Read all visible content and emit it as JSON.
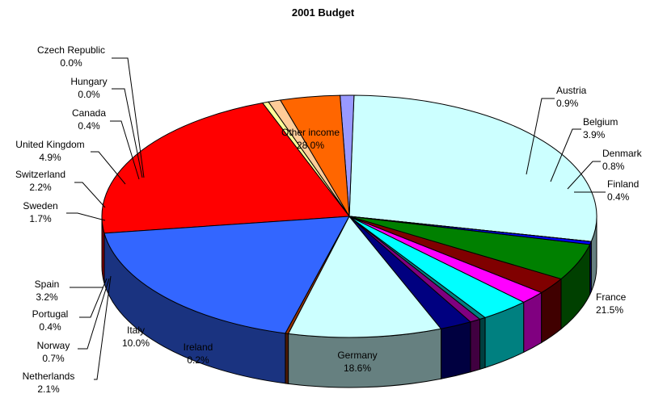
{
  "chart_data": {
    "type": "pie",
    "title": "2001 Budget",
    "slices": [
      {
        "label": "Other income",
        "value": 28.0,
        "value_label": "28.0%",
        "color": "#CCFFFF"
      },
      {
        "label": "Austria",
        "value": 0.9,
        "value_label": "0.9%",
        "color": "#9999FF"
      },
      {
        "label": "Belgium",
        "value": 3.9,
        "value_label": "3.9%",
        "color": "#FF6600"
      },
      {
        "label": "Denmark",
        "value": 0.8,
        "value_label": "0.8%",
        "color": "#FFCC99"
      },
      {
        "label": "Finland",
        "value": 0.4,
        "value_label": "0.4%",
        "color": "#FFFF99"
      },
      {
        "label": "France",
        "value": 21.5,
        "value_label": "21.5%",
        "color": "#FF0000"
      },
      {
        "label": "Germany",
        "value": 18.6,
        "value_label": "18.6%",
        "color": "#3366FF"
      },
      {
        "label": "Ireland",
        "value": 0.2,
        "value_label": "0.2%",
        "color": "#993300"
      },
      {
        "label": "Italy",
        "value": 10.0,
        "value_label": "10.0%",
        "color": "#CCFFFF"
      },
      {
        "label": "Netherlands",
        "value": 2.1,
        "value_label": "2.1%",
        "color": "#000080"
      },
      {
        "label": "Norway",
        "value": 0.7,
        "value_label": "0.7%",
        "color": "#800080"
      },
      {
        "label": "Portugal",
        "value": 0.4,
        "value_label": "0.4%",
        "color": "#008080"
      },
      {
        "label": "Spain",
        "value": 3.2,
        "value_label": "3.2%",
        "color": "#00FFFF"
      },
      {
        "label": "Sweden",
        "value": 1.7,
        "value_label": "1.7%",
        "color": "#FF00FF"
      },
      {
        "label": "Switzerland",
        "value": 2.2,
        "value_label": "2.2%",
        "color": "#800000"
      },
      {
        "label": "United Kingdom",
        "value": 4.9,
        "value_label": "4.9%",
        "color": "#008000"
      },
      {
        "label": "Canada",
        "value": 0.4,
        "value_label": "0.4%",
        "color": "#0000FF"
      },
      {
        "label": "Hungary",
        "value": 0.0,
        "value_label": "0.0%",
        "color": "#000000"
      },
      {
        "label": "Czech Republic",
        "value": 0.0,
        "value_label": "0.0%",
        "color": "#000000"
      }
    ]
  }
}
